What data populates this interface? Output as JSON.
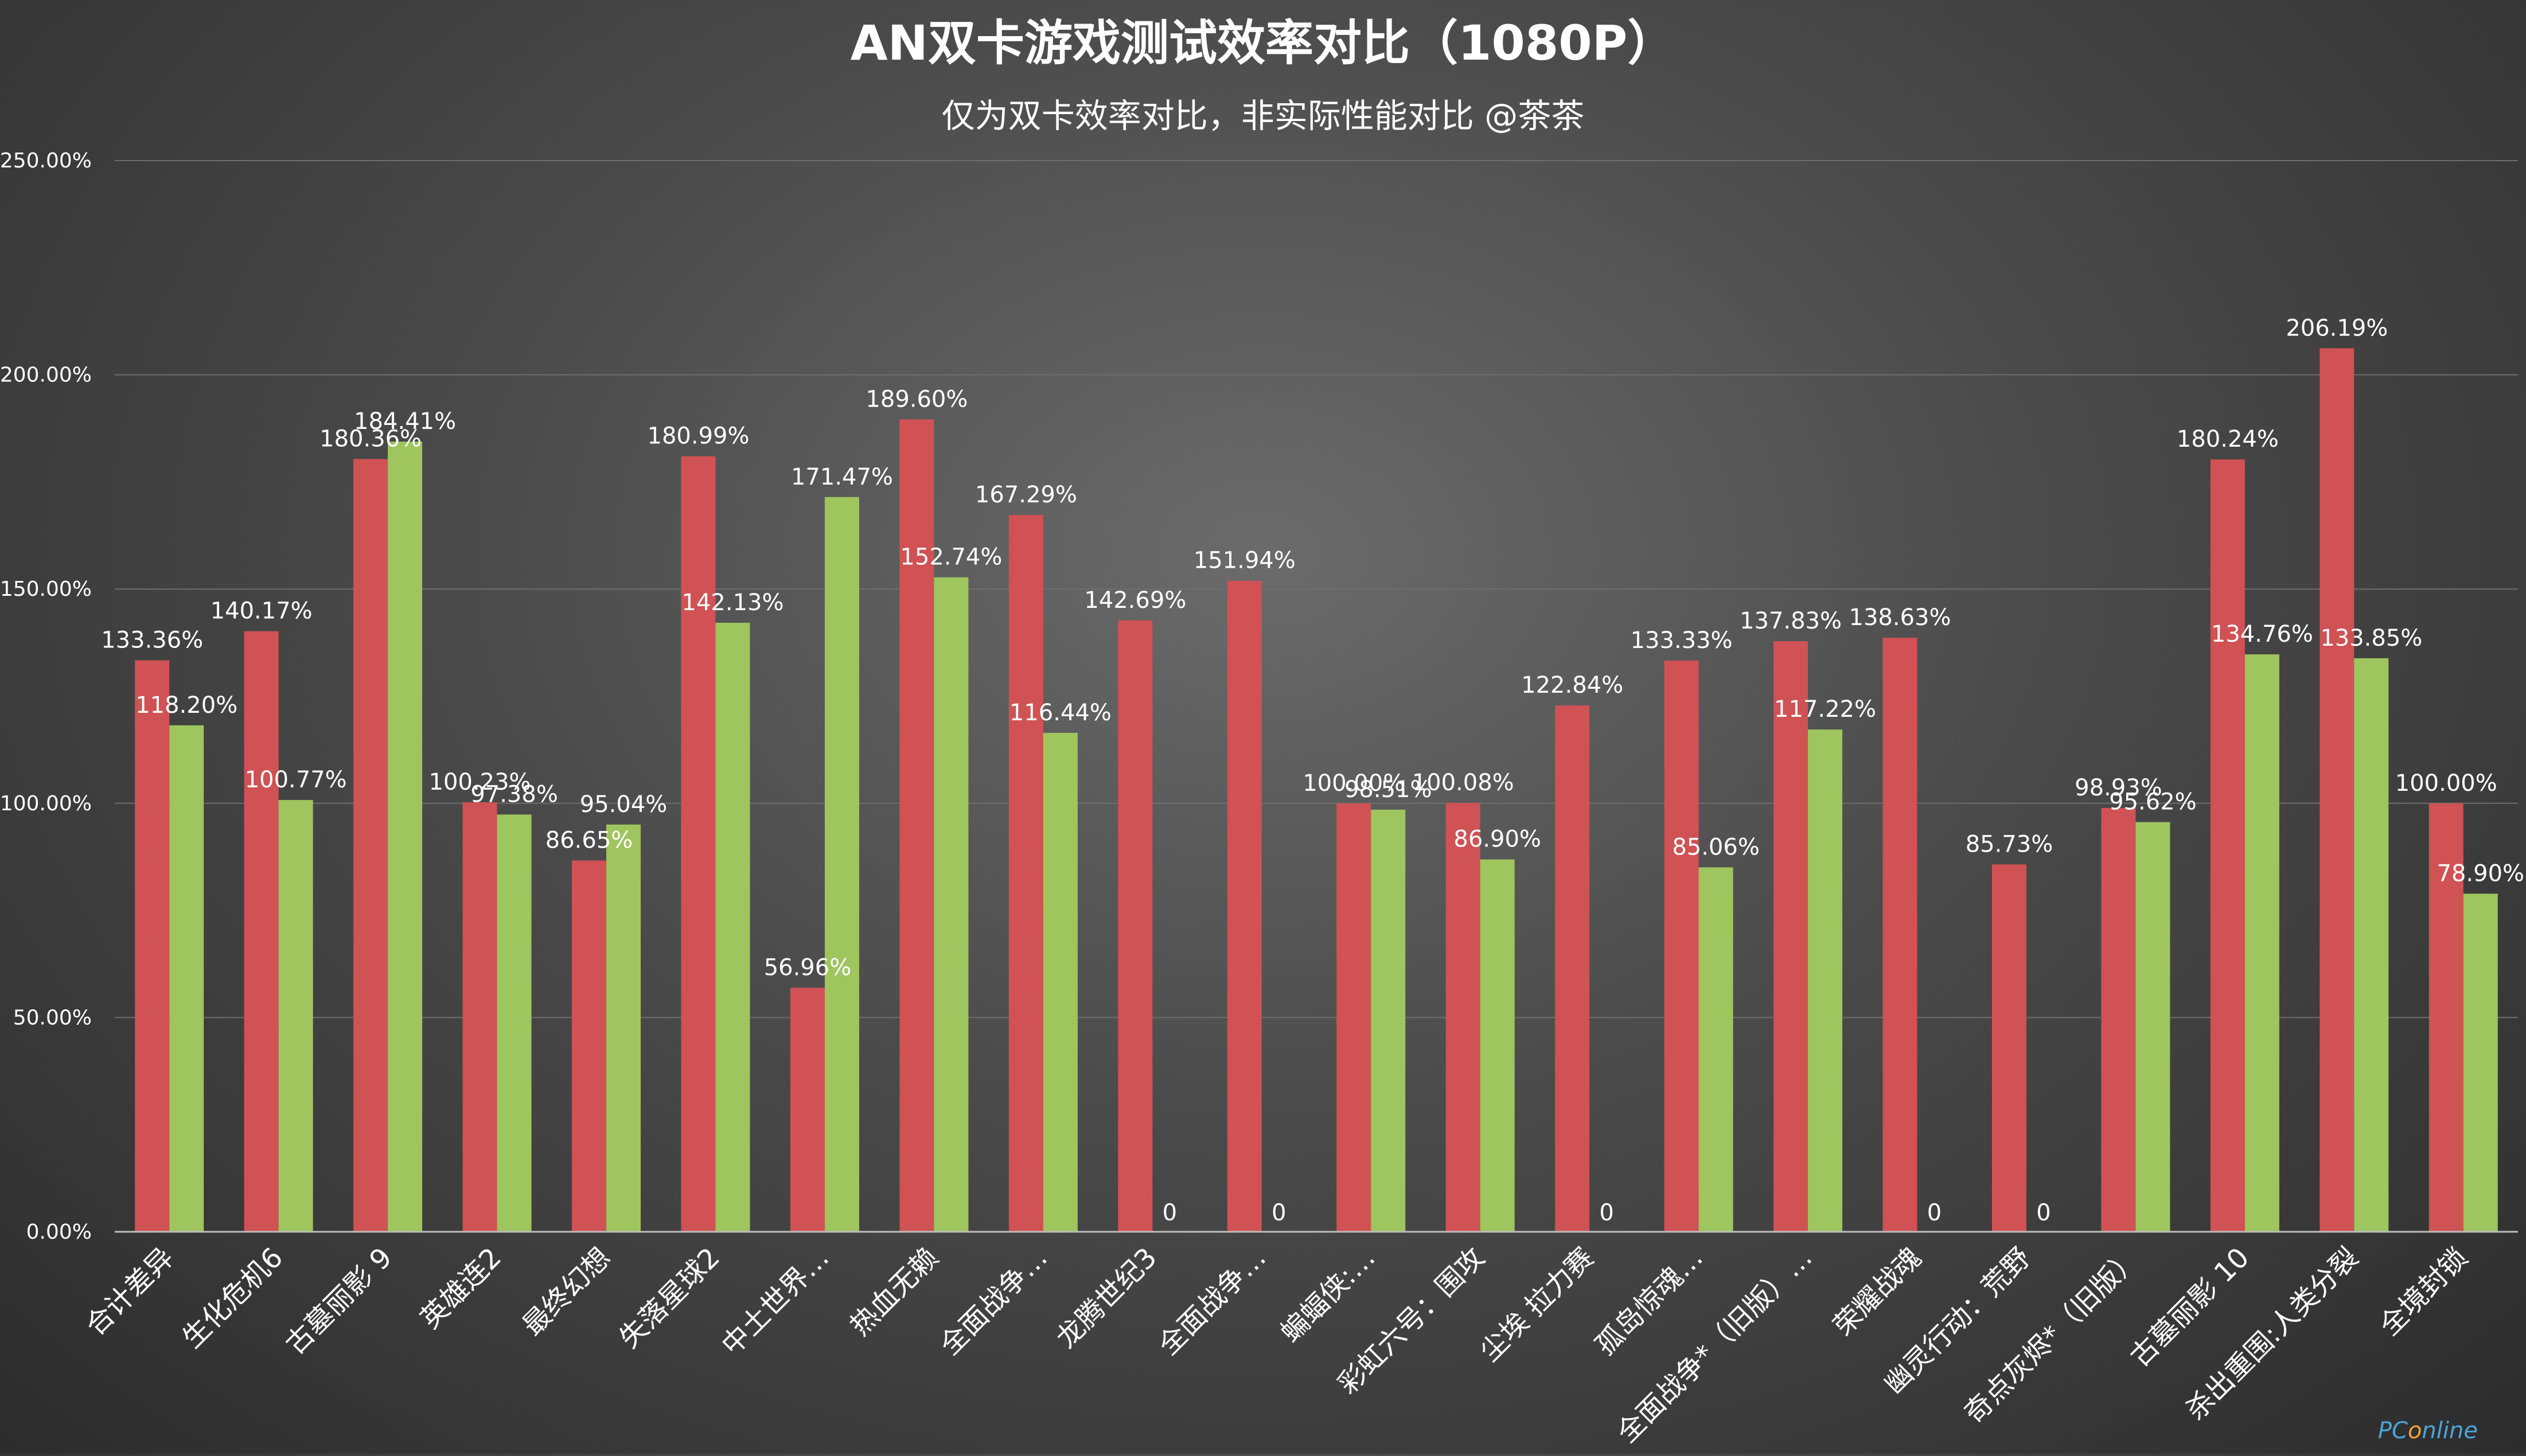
{
  "chart_data": {
    "type": "bar",
    "title": "AN双卡游戏测试效率对比（1080P）",
    "subtitle": "仅为双卡效率对比，非实际性能对比 @茶茶",
    "watermark": "PConline",
    "categories": [
      "合计差异",
      "生化危机6",
      "古墓丽影 9",
      "英雄连2",
      "最终幻想",
      "失落星球2",
      "中土世界…",
      "热血无赖",
      "全面战争…",
      "龙腾世纪3",
      "全面战争…",
      "蝙蝠侠:…",
      "彩虹六号：围攻",
      "尘埃 拉力赛",
      "孤岛惊魂…",
      "全面战争*（旧版）…",
      "荣耀战魂",
      "幽灵行动：荒野",
      "奇点灰烬*（旧版）",
      "古墓丽影 10",
      "杀出重围:人类分裂",
      "全境封锁"
    ],
    "series": [
      {
        "color": "#d05254",
        "values": [
          133.36,
          140.17,
          180.36,
          100.23,
          86.65,
          180.99,
          56.96,
          189.6,
          167.29,
          142.69,
          151.94,
          100.0,
          100.08,
          122.84,
          133.33,
          137.83,
          138.63,
          85.73,
          98.93,
          180.24,
          206.19,
          100.0
        ],
        "labels": [
          "133.36%",
          "140.17%",
          "180.36%",
          "100.23%",
          "86.65%",
          "180.99%",
          "56.96%",
          "189.60%",
          "167.29%",
          "142.69%",
          "151.94%",
          "100.00%",
          "100.08%",
          "122.84%",
          "133.33%",
          "137.83%",
          "138.63%",
          "85.73%",
          "98.93%",
          "180.24%",
          "206.19%",
          "100.00%"
        ]
      },
      {
        "color": "#9fc55e",
        "values": [
          118.2,
          100.77,
          184.41,
          97.38,
          95.04,
          142.13,
          171.47,
          152.74,
          116.44,
          0,
          0,
          98.51,
          86.9,
          0,
          85.06,
          117.22,
          0,
          0,
          95.62,
          134.76,
          133.85,
          78.9
        ],
        "labels": [
          "118.20%",
          "100.77%",
          "184.41%",
          "97.38%",
          "95.04%",
          "142.13%",
          "171.47%",
          "152.74%",
          "116.44%",
          "0",
          "0",
          "98.51%",
          "86.90%",
          "0",
          "85.06%",
          "117.22%",
          "0",
          "0",
          "95.62%",
          "134.76%",
          "133.85%",
          "78.90%"
        ]
      }
    ],
    "ylim": [
      0,
      250
    ],
    "yticks": [
      0,
      50,
      100,
      150,
      200,
      250
    ],
    "ytick_labels": [
      "0.00%",
      "50.00%",
      "100.00%",
      "150.00%",
      "200.00%",
      "250.00%"
    ],
    "grid": true,
    "xlabel": "",
    "ylabel": ""
  }
}
